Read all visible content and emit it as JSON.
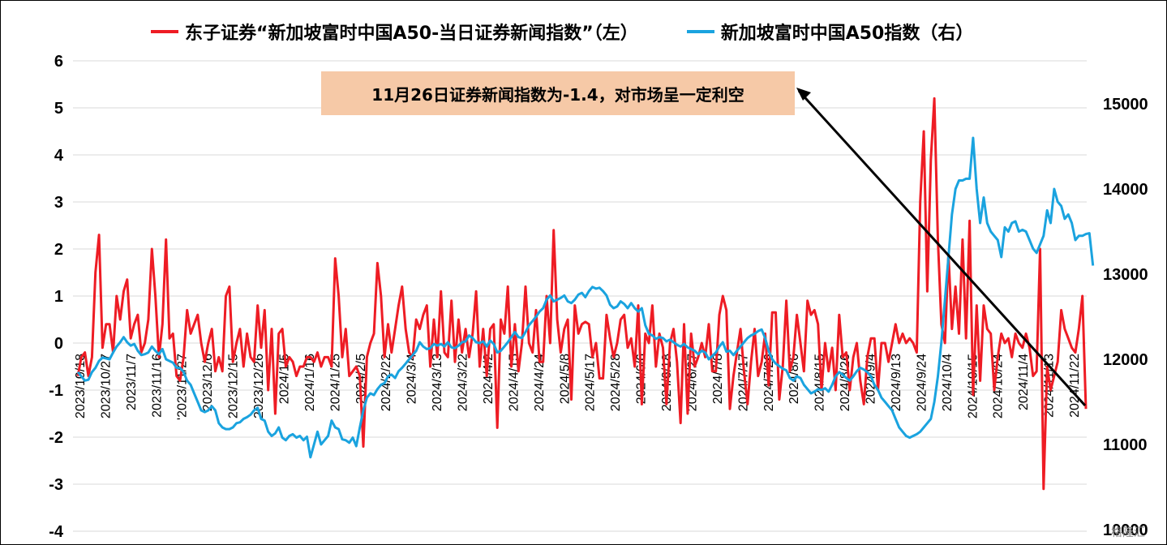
{
  "chart_data": {
    "type": "line",
    "title": "",
    "colors": {
      "left_series": "#ee1c24",
      "right_series": "#1aa3df",
      "arrow": "#000000"
    },
    "legend": [
      {
        "label": "东子证券“新加坡富时中国A50-当日证券新闻指数”（左）",
        "color": "#ee1c24"
      },
      {
        "label": "新加坡富时中国A50指数（右）",
        "color": "#1aa3df"
      }
    ],
    "annotation": "11月26日证券新闻指数为-1.4，对市场呈一定利空",
    "y_left": {
      "min": -4,
      "max": 6,
      "ticks": [
        "6",
        "5",
        "4",
        "3",
        "2",
        "1",
        "0",
        "-1",
        "-2",
        "-3",
        "-4"
      ]
    },
    "y_right": {
      "min": 10000,
      "max": 15500,
      "ticks": [
        "15000",
        "14000",
        "13000",
        "12000",
        "11000",
        "10000"
      ]
    },
    "x_labels": [
      "2023/10/18",
      "2023/10/27",
      "2023/11/7",
      "2023/11/16",
      "'2023/11/27",
      "2023/12/6",
      "2023/12/15",
      "2023/12/26",
      "2024/1/5",
      "2024/1/16",
      "2024/1/25",
      "2024/2/5",
      "2024/2/22",
      "2024/3/4",
      "2024/3/13",
      "2024/3/22",
      "2024/4/2",
      "2024/4/15",
      "2024/4/24",
      "2024/5/8",
      "2024/5/17",
      "2024/5/28",
      "2024/6/6",
      "2024/6/18",
      "2024/6/27",
      "2024/7/8",
      "2024/7/17",
      "2024/7/26",
      "2024/8/6",
      "2024/8/15",
      "2024/8/26",
      "2024/9/4",
      "2024/9/13",
      "2024/9/24",
      "2024/10/4",
      "2024/10/15",
      "2024/10/24",
      "2024/11/4",
      "2024/11/13",
      "2024/11/22"
    ],
    "series": [
      {
        "name": "东子证券“新加坡富时中国A50-当日证券新闻指数”（左）",
        "axis": "left",
        "values": [
          -0.7,
          -0.3,
          -0.2,
          -0.7,
          -0.3,
          1.5,
          2.3,
          -0.1,
          0.4,
          0.4,
          -0.2,
          1.0,
          0.5,
          1.1,
          1.35,
          0.1,
          0.4,
          0.6,
          -0.2,
          0.0,
          0.5,
          2.0,
          1.0,
          -0.3,
          0.4,
          2.2,
          0.1,
          0.2,
          -0.7,
          -0.8,
          -0.3,
          0.7,
          0.2,
          0.4,
          0.6,
          0.0,
          -0.4,
          0.0,
          0.3,
          -0.6,
          -0.3,
          -0.6,
          1.0,
          1.2,
          -0.4,
          0.0,
          0.3,
          -0.5,
          0.2,
          -0.3,
          -0.4,
          0.8,
          -0.1,
          0.7,
          -1.0,
          0.3,
          -1.5,
          0.2,
          0.3,
          -0.5,
          -0.3,
          -0.4,
          -0.7,
          -0.5,
          -0.5,
          -0.3,
          -0.3,
          -0.4,
          -0.2,
          -0.5,
          -0.3,
          -0.3,
          -0.5,
          1.8,
          1.0,
          -0.3,
          0.3,
          -0.7,
          -0.6,
          -0.5,
          -0.7,
          -2.2,
          -0.3,
          0.0,
          0.2,
          1.7,
          1.0,
          -0.3,
          0.4,
          -0.2,
          0.3,
          0.8,
          1.2,
          0.3,
          -0.2,
          -0.3,
          0.5,
          0.3,
          0.6,
          0.8,
          -0.5,
          0.5,
          -0.3,
          1.1,
          -0.2,
          -0.3,
          0.9,
          -0.4,
          0.5,
          -0.2,
          0.3,
          -0.3,
          0.2,
          1.1,
          -0.5,
          0.3,
          -0.7,
          0.3,
          0.4,
          -1.8,
          0.5,
          0.2,
          1.2,
          -0.5,
          0.4,
          -0.6,
          0.0,
          1.2,
          0.0,
          -0.2,
          0.7,
          -0.4,
          -0.4,
          1.0,
          0.0,
          2.4,
          0.5,
          -0.2,
          0.3,
          0.5,
          -1.2,
          0.8,
          0.2,
          0.4,
          0.45,
          0.4,
          -0.3,
          0.0,
          -0.75,
          -0.75,
          0.6,
          0.1,
          -0.3,
          0.0,
          0.5,
          0.6,
          -0.1,
          0.1,
          -0.5,
          0.8,
          -1.3,
          0.2,
          0.0,
          0.8,
          -0.5,
          0.2,
          -0.1,
          -1.3,
          0.0,
          0.3,
          -0.4,
          -1.7,
          0.4,
          -1.5,
          0.2,
          -0.5,
          -0.3,
          0.0,
          -0.3,
          0.4,
          -0.6,
          -0.6,
          0.6,
          1.0,
          0.7,
          -1.4,
          -0.7,
          -0.2,
          0.3,
          -0.6,
          -1.3,
          -0.4,
          0.3,
          -0.7,
          -0.4,
          0.2,
          -0.9,
          0.65,
          0.65,
          -1.2,
          -0.5,
          0.9,
          -0.6,
          -0.3,
          0.6,
          0.0,
          -0.6,
          0.9,
          0.6,
          0.7,
          0.4,
          -1.0,
          0.0,
          -0.6,
          -0.1,
          -1.0,
          0.6,
          -0.3,
          -0.2,
          -1.0,
          -0.3,
          0.0,
          -0.8,
          -1.3,
          -0.3,
          0.1,
          0.1,
          -1.0,
          0.0,
          0.0,
          -0.4,
          0.0,
          0.4,
          0.0,
          0.2,
          0.0,
          0.1,
          0.0,
          -0.2,
          3.0,
          4.5,
          1.1,
          3.9,
          5.2,
          2.2,
          0.4,
          0.0,
          1.9,
          0.3,
          1.2,
          0.2,
          2.2,
          0.1,
          2.6,
          -1.1,
          0.8,
          -0.8,
          0.8,
          0.3,
          0.2,
          -1.0,
          -0.3,
          0.2,
          0.0,
          0.1,
          -0.3,
          0.2,
          0.0,
          -0.1,
          0.2,
          -0.1,
          -0.7,
          -0.6,
          2.0,
          -3.1,
          -0.5,
          -1.0,
          -0.7,
          -0.4,
          0.7,
          0.3,
          0.1,
          -0.1,
          -0.2,
          0.3,
          1.0,
          -1.4
        ]
      },
      {
        "name": "新加坡富时中国A50指数（右）",
        "axis": "right",
        "values": [
          11850,
          11800,
          11750,
          11760,
          11850,
          11900,
          11980,
          12020,
          12010,
          12000,
          12080,
          12150,
          12200,
          12260,
          12200,
          12160,
          12180,
          12100,
          12050,
          12060,
          12080,
          12150,
          12100,
          12060,
          12120,
          12000,
          11980,
          11960,
          11900,
          11900,
          11850,
          11750,
          11700,
          11600,
          11500,
          11400,
          11380,
          11400,
          11450,
          11400,
          11250,
          11200,
          11180,
          11180,
          11200,
          11250,
          11260,
          11300,
          11320,
          11350,
          11400,
          11430,
          11300,
          11280,
          11150,
          11100,
          11130,
          11200,
          11080,
          11050,
          11100,
          11120,
          11080,
          11100,
          11050,
          11090,
          10850,
          11000,
          11150,
          11000,
          11050,
          11100,
          11280,
          11200,
          11180,
          11060,
          11050,
          11020,
          11080,
          10980,
          11200,
          11400,
          11550,
          11600,
          11580,
          11650,
          11700,
          11720,
          11800,
          11820,
          11780,
          11860,
          11900,
          11950,
          12000,
          12050,
          12100,
          12200,
          12150,
          12120,
          12130,
          12180,
          12160,
          12180,
          12150,
          12200,
          12140,
          12130,
          12160,
          12200,
          12210,
          12280,
          12250,
          12200,
          12190,
          12210,
          12150,
          12220,
          12180,
          12080,
          12100,
          12150,
          12200,
          12260,
          12320,
          12260,
          12250,
          12320,
          12400,
          12450,
          12500,
          12560,
          12600,
          12700,
          12750,
          12680,
          12700,
          12720,
          12750,
          12680,
          12660,
          12700,
          12760,
          12780,
          12730,
          12800,
          12850,
          12830,
          12840,
          12800,
          12750,
          12640,
          12600,
          12620,
          12680,
          12650,
          12600,
          12660,
          12600,
          12560,
          12600,
          12400,
          12300,
          12280,
          12240,
          12260,
          12250,
          12210,
          12230,
          12200,
          12170,
          12150,
          12180,
          12140,
          12120,
          12100,
          12060,
          12100,
          12080,
          12000,
          12040,
          12080,
          12150,
          12200,
          12090,
          12100,
          12050,
          12100,
          12150,
          12200,
          12250,
          12280,
          12300,
          12330,
          12350,
          12250,
          12100,
          12000,
          11950,
          11920,
          11890,
          11870,
          11780,
          11750,
          11800,
          11780,
          11700,
          11650,
          11600,
          11620,
          11650,
          11640,
          11660,
          11620,
          11700,
          11800,
          11850,
          11820,
          11780,
          11750,
          11800,
          11860,
          11900,
          11880,
          11850,
          11800,
          11700,
          11640,
          11550,
          11500,
          11450,
          11400,
          11300,
          11200,
          11150,
          11100,
          11080,
          11100,
          11120,
          11150,
          11200,
          11250,
          11300,
          11500,
          11800,
          12200,
          12700,
          13200,
          13700,
          14000,
          14100,
          14100,
          14120,
          14120,
          14600,
          14000,
          13600,
          13900,
          13600,
          13500,
          13450,
          13400,
          13200,
          13550,
          13500,
          13600,
          13620,
          13500,
          13520,
          13500,
          13400,
          13300,
          13250,
          13350,
          13450,
          13750,
          13600,
          14000,
          13850,
          13800,
          13650,
          13700,
          13600,
          13400,
          13450,
          13450,
          13470,
          13480,
          13100
        ]
      }
    ]
  },
  "watermark": "格隆汇"
}
